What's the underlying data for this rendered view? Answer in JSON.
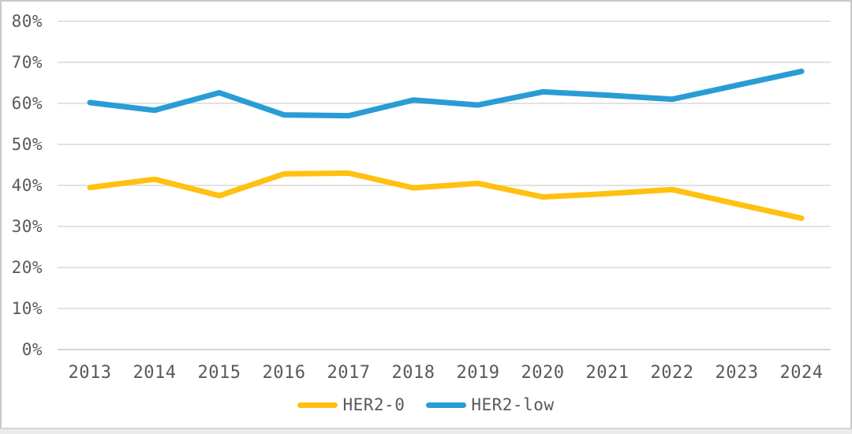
{
  "chart_data": {
    "type": "line",
    "title": "",
    "categories": [
      "2013",
      "2014",
      "2015",
      "2016",
      "2017",
      "2018",
      "2019",
      "2020",
      "2021",
      "2022",
      "2023",
      "2024"
    ],
    "series": [
      {
        "name": "HER2-0",
        "color": "#FFC010",
        "values": [
          39.5,
          41.5,
          37.5,
          42.8,
          43.0,
          39.4,
          40.5,
          37.2,
          38.0,
          39.0,
          35.5,
          32.0
        ]
      },
      {
        "name": "HER2-low",
        "color": "#2A9CD5",
        "values": [
          60.2,
          58.3,
          62.6,
          57.2,
          57.0,
          60.8,
          59.6,
          62.8,
          62.0,
          61.0,
          64.4,
          67.8
        ]
      }
    ],
    "y_axis": {
      "min": 0,
      "max": 80,
      "step": 10,
      "tick_suffix": "%"
    },
    "x_axis": {
      "label": ""
    },
    "grid": true,
    "legend_position": "bottom",
    "line_width": 7,
    "gridline_color": "#D9D9D9",
    "axis_line_color": "#C6C6C6",
    "label_color": "#595959",
    "background_color": "#FFFFFF"
  }
}
